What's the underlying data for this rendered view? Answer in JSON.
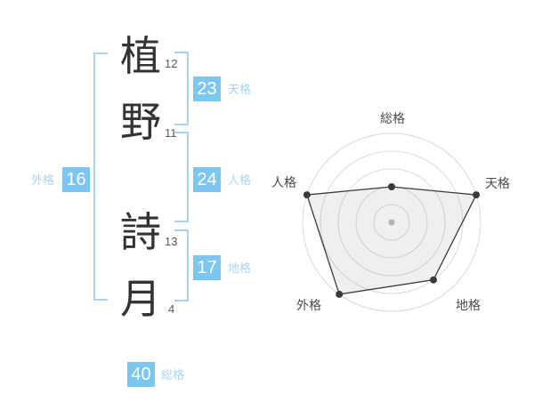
{
  "name_diagram": {
    "characters": [
      {
        "char": "植",
        "strokes": "12"
      },
      {
        "char": "野",
        "strokes": "11"
      },
      {
        "char": "詩",
        "strokes": "13"
      },
      {
        "char": "月",
        "strokes": "4"
      }
    ],
    "badges": {
      "tenkaku": {
        "value": "23",
        "label": "天格"
      },
      "jinkaku": {
        "value": "24",
        "label": "人格"
      },
      "chikaku": {
        "value": "17",
        "label": "地格"
      },
      "gaikaku": {
        "value": "16",
        "label": "外格"
      },
      "soukaku": {
        "value": "40",
        "label": "総格"
      }
    }
  },
  "colors": {
    "badge_bg": "#7cc6f2",
    "badge_text": "#ffffff",
    "label_blue": "#a9d5f3",
    "bracket_blue": "#a6d4f2",
    "kanji_text": "#333333",
    "axis_label_text": "#4a4a4a",
    "ring_stroke": "#d9d9d9",
    "polygon_stroke": "#3a3a3a",
    "polygon_fill": "rgba(120,120,120,0.12)",
    "vertex_dot": "#3a3a3a",
    "center_dot": "#b3b3b3"
  },
  "chart_data": {
    "type": "radar",
    "categories": [
      "総格",
      "天格",
      "地格",
      "外格",
      "人格"
    ],
    "values": [
      40,
      100,
      80,
      100,
      100
    ],
    "max": 100,
    "rings": 5,
    "start_angle_deg": -90,
    "clockwise": true,
    "legend": "none",
    "grid": "circular"
  }
}
